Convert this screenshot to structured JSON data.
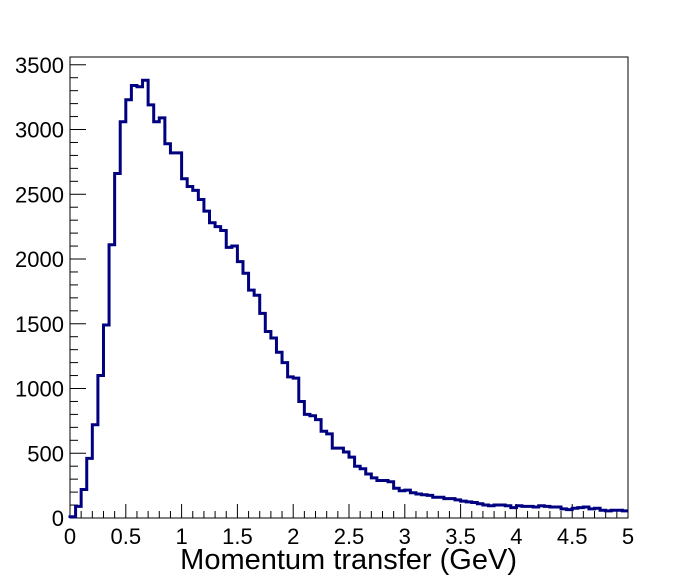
{
  "chart_data": {
    "type": "histogram",
    "title": "",
    "xlabel": "Momentum transfer (GeV)",
    "ylabel": "",
    "xlim": [
      0,
      5
    ],
    "ylim": [
      0,
      3560
    ],
    "grid": false,
    "legend": "none",
    "bin_width": 0.05,
    "x_ticks": [
      {
        "value": 0,
        "label": "0"
      },
      {
        "value": 0.5,
        "label": "0.5"
      },
      {
        "value": 1,
        "label": "1"
      },
      {
        "value": 1.5,
        "label": "1.5"
      },
      {
        "value": 2,
        "label": "2"
      },
      {
        "value": 2.5,
        "label": "2.5"
      },
      {
        "value": 3,
        "label": "3"
      },
      {
        "value": 3.5,
        "label": "3.5"
      },
      {
        "value": 4,
        "label": "4"
      },
      {
        "value": 4.5,
        "label": "4.5"
      },
      {
        "value": 5,
        "label": "5"
      }
    ],
    "y_ticks": [
      {
        "value": 0,
        "label": "0"
      },
      {
        "value": 500,
        "label": "500"
      },
      {
        "value": 1000,
        "label": "1000"
      },
      {
        "value": 1500,
        "label": "1500"
      },
      {
        "value": 2000,
        "label": "2000"
      },
      {
        "value": 2500,
        "label": "2500"
      },
      {
        "value": 3000,
        "label": "3000"
      },
      {
        "value": 3500,
        "label": "3500"
      }
    ],
    "series": [
      {
        "color": "#000080",
        "bin_edges_start": 0,
        "values": [
          10,
          90,
          220,
          460,
          720,
          1100,
          1490,
          2110,
          2660,
          3060,
          3230,
          3340,
          3330,
          3380,
          3190,
          3060,
          3090,
          2890,
          2820,
          2820,
          2620,
          2560,
          2530,
          2460,
          2370,
          2280,
          2250,
          2220,
          2090,
          2100,
          1980,
          1890,
          1760,
          1720,
          1580,
          1440,
          1390,
          1280,
          1200,
          1090,
          1080,
          900,
          800,
          790,
          760,
          670,
          650,
          540,
          540,
          510,
          470,
          400,
          380,
          340,
          310,
          290,
          290,
          280,
          230,
          210,
          215,
          195,
          185,
          180,
          175,
          160,
          160,
          150,
          150,
          140,
          130,
          125,
          120,
          110,
          100,
          95,
          100,
          100,
          95,
          80,
          95,
          90,
          90,
          85,
          95,
          90,
          85,
          85,
          70,
          65,
          75,
          80,
          85,
          70,
          75,
          60,
          55,
          60,
          60,
          55
        ]
      }
    ]
  }
}
